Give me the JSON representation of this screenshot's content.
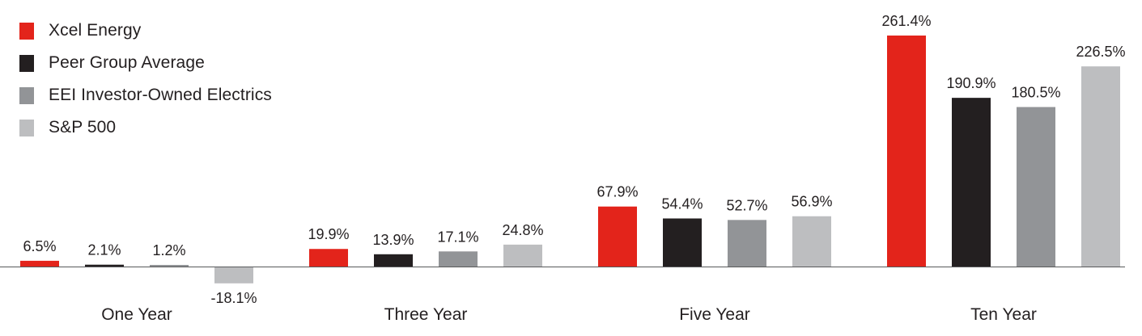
{
  "chart_data": {
    "type": "bar",
    "categories": [
      "One Year",
      "Three Year",
      "Five Year",
      "Ten Year"
    ],
    "series": [
      {
        "name": "Xcel Energy",
        "color": "#e3241b",
        "values": [
          6.5,
          19.9,
          67.9,
          261.4
        ],
        "labels": [
          "6.5%",
          "19.9%",
          "67.9%",
          "261.4%"
        ]
      },
      {
        "name": "Peer Group Average",
        "color": "#231f20",
        "values": [
          2.1,
          13.9,
          54.4,
          190.9
        ],
        "labels": [
          "2.1%",
          "13.9%",
          "54.4%",
          "190.9%"
        ]
      },
      {
        "name": "EEI Investor-Owned Electrics",
        "color": "#929497",
        "values": [
          1.2,
          17.1,
          52.7,
          180.5
        ],
        "labels": [
          "1.2%",
          "17.1%",
          "52.7%",
          "180.5%"
        ]
      },
      {
        "name": "S&P 500",
        "color": "#bdbec0",
        "values": [
          -18.1,
          24.8,
          56.9,
          226.5
        ],
        "labels": [
          "-18.1%",
          "24.8%",
          "56.9%",
          "226.5%"
        ]
      }
    ],
    "legend_position": "top-left",
    "grid": false
  }
}
